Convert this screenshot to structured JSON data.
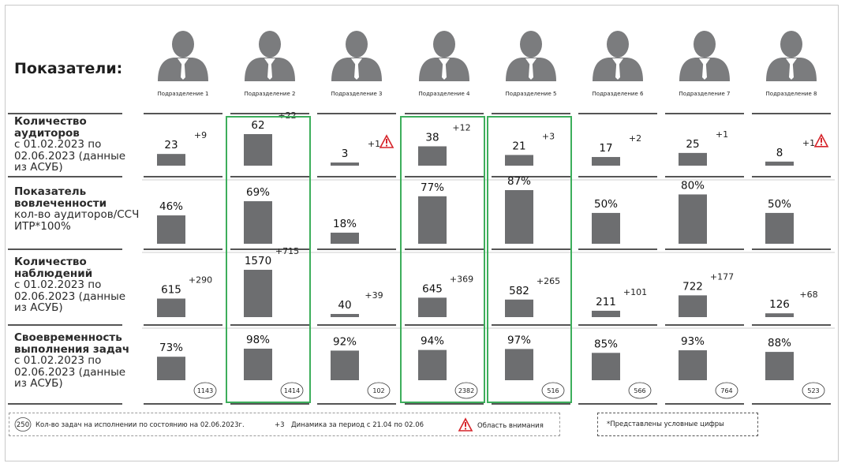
{
  "title": "Показатели:",
  "departments": [
    "Подразделение 1",
    "Подразделение 2",
    "Подразделение 3",
    "Подразделение 4",
    "Подразделение 5",
    "Подразделение 6",
    "Подразделение 7",
    "Подразделение 8"
  ],
  "highlighted_columns": [
    2,
    4,
    5
  ],
  "rows": [
    {
      "title": "Количество аудиторов",
      "subtitle": "с 01.02.2023 по 02.06.2023 (данные из АСУБ)"
    },
    {
      "title": "Показатель вовлеченности",
      "subtitle": "кол-во аудиторов/ССЧ ИТР*100%"
    },
    {
      "title": "Количество наблюдений",
      "subtitle": "с 01.02.2023 по 02.06.2023 (данные из АСУБ)"
    },
    {
      "title": "Своевременность выполнения задач",
      "subtitle": "с 01.02.2023 по 02.06.2023 (данные из АСУБ)"
    }
  ],
  "chart_data": [
    {
      "type": "bar",
      "title": "Количество аудиторов",
      "categories": [
        "Подразделение 1",
        "Подразделение 2",
        "Подразделение 3",
        "Подразделение 4",
        "Подразделение 5",
        "Подразделение 6",
        "Подразделение 7",
        "Подразделение 8"
      ],
      "values": [
        23,
        62,
        3,
        38,
        21,
        17,
        25,
        8
      ],
      "labels": [
        "23",
        "62",
        "3",
        "38",
        "21",
        "17",
        "25",
        "8"
      ],
      "deltas": [
        "+9",
        "+22",
        "+1",
        "+12",
        "+3",
        "+2",
        "+1",
        "+1"
      ],
      "attention": [
        false,
        false,
        true,
        false,
        false,
        false,
        false,
        true
      ]
    },
    {
      "type": "bar",
      "title": "Показатель вовлеченности",
      "categories": [
        "Подразделение 1",
        "Подразделение 2",
        "Подразделение 3",
        "Подразделение 4",
        "Подразделение 5",
        "Подразделение 6",
        "Подразделение 7",
        "Подразделение 8"
      ],
      "values": [
        46,
        69,
        18,
        77,
        87,
        50,
        80,
        50
      ],
      "labels": [
        "46%",
        "69%",
        "18%",
        "77%",
        "87%",
        "50%",
        "80%",
        "50%"
      ]
    },
    {
      "type": "bar",
      "title": "Количество наблюдений",
      "categories": [
        "Подразделение 1",
        "Подразделение 2",
        "Подразделение 3",
        "Подразделение 4",
        "Подразделение 5",
        "Подразделение 6",
        "Подразделение 7",
        "Подразделение 8"
      ],
      "values": [
        615,
        1570,
        40,
        645,
        582,
        211,
        722,
        126
      ],
      "labels": [
        "615",
        "1570",
        "40",
        "645",
        "582",
        "211",
        "722",
        "126"
      ],
      "deltas": [
        "+290",
        "+715",
        "+39",
        "+369",
        "+265",
        "+101",
        "+177",
        "+68"
      ]
    },
    {
      "type": "bar",
      "title": "Своевременность выполнения задач",
      "categories": [
        "Подразделение 1",
        "Подразделение 2",
        "Подразделение 3",
        "Подразделение 4",
        "Подразделение 5",
        "Подразделение 6",
        "Подразделение 7",
        "Подразделение 8"
      ],
      "values": [
        73,
        98,
        92,
        94,
        97,
        85,
        93,
        88
      ],
      "labels": [
        "73%",
        "98%",
        "92%",
        "94%",
        "97%",
        "85%",
        "93%",
        "88%"
      ],
      "tasks": [
        "1143",
        "1414",
        "102",
        "2382",
        "516",
        "566",
        "764",
        "523"
      ]
    }
  ],
  "legend": {
    "sample_count": "250",
    "count_text": "Кол-во задач на исполнении по состоянию на 02.06.2023г.",
    "sample_delta": "+3",
    "delta_text": "Динамика за период с 21.04 по 02.06",
    "attention_text": "Область внимания"
  },
  "note": "*Представлены условные цифры",
  "colors": {
    "bar": "#6d6e70",
    "highlight": "#3dae5b",
    "attention": "#d6242a",
    "person": "#7b7c7e",
    "divider": "#555555"
  }
}
